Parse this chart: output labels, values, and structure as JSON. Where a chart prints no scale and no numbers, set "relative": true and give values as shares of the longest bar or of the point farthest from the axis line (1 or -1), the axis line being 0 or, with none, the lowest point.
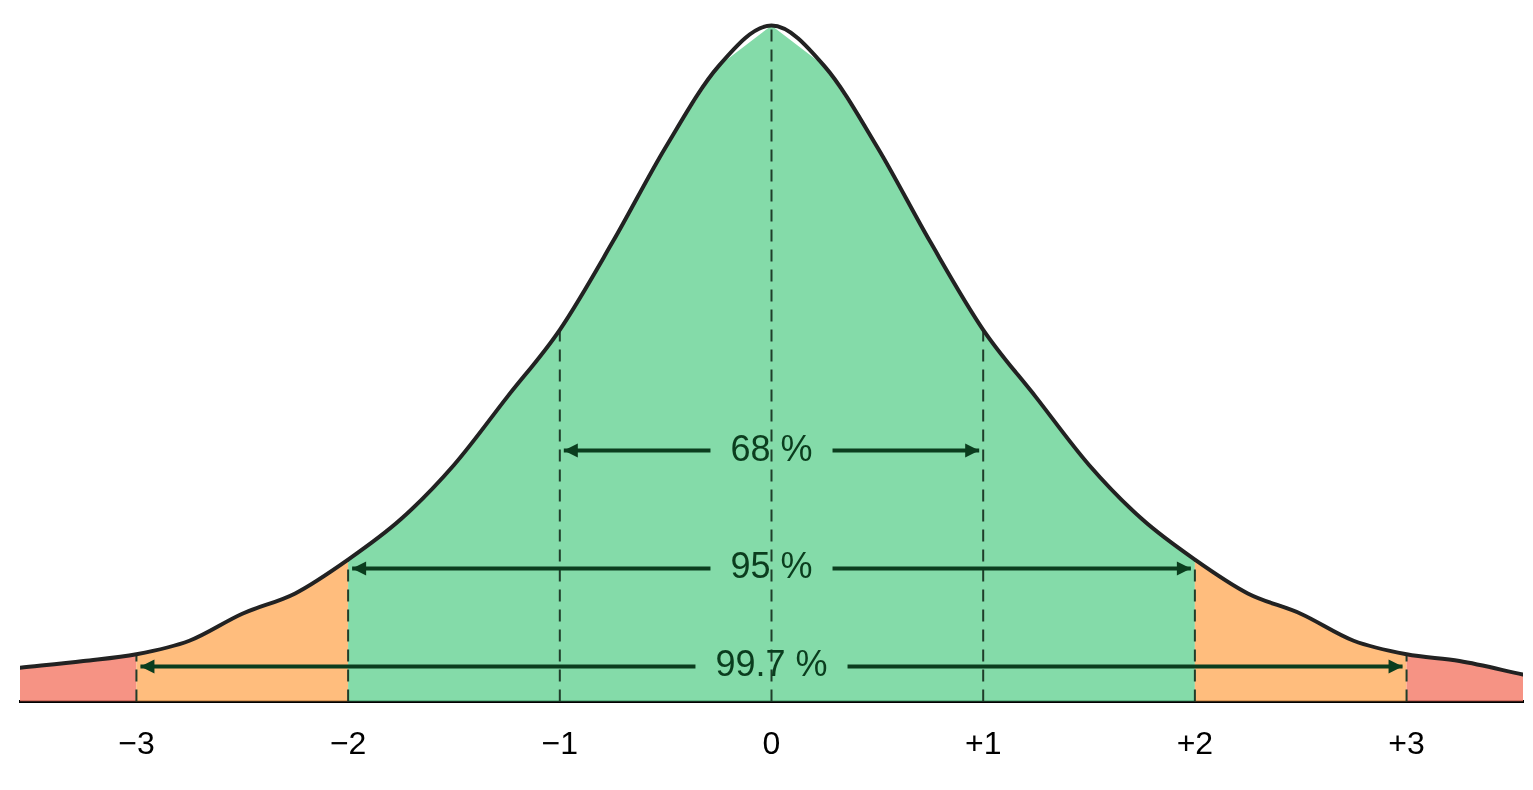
{
  "chart_data": {
    "type": "line",
    "relative": true,
    "legend": false,
    "grid": false,
    "marker": "none",
    "tick_labels": "x",
    "x": [
      -3.55,
      -3.25,
      -3,
      -2.75,
      -2.5,
      -2.25,
      -2,
      -1.75,
      -1.5,
      -1.25,
      -1,
      -0.75,
      -0.5,
      -0.25,
      0,
      0.25,
      0.5,
      0.75,
      1,
      1.25,
      1.5,
      1.75,
      2,
      2.25,
      2.5,
      2.75,
      3,
      3.25,
      3.55
    ],
    "series": [
      {
        "color": "#222222",
        "values": [
          0.05,
          0.06,
          0.07,
          0.09,
          0.13,
          0.16,
          0.21,
          0.27,
          0.35,
          0.45,
          0.55,
          0.68,
          0.82,
          0.94,
          1,
          0.94,
          0.82,
          0.68,
          0.55,
          0.45,
          0.35,
          0.27,
          0.21,
          0.16,
          0.13,
          0.09,
          0.07,
          0.06,
          0.04
        ]
      }
    ],
    "xlim": [
      -3.55,
      3.55
    ],
    "xticks": [
      {
        "value": -3,
        "label": "−3"
      },
      {
        "value": -2,
        "label": "−2"
      },
      {
        "value": -1,
        "label": "−1"
      },
      0,
      {
        "value": 1,
        "label": "+1"
      },
      {
        "value": 2,
        "label": "+2"
      },
      {
        "value": 3,
        "label": "+3"
      }
    ],
    "bands": [
      {
        "axis": "x",
        "from": -3.55,
        "to": -3,
        "color": "#f4806e"
      },
      {
        "axis": "x",
        "from": -3,
        "to": -2,
        "color": "#ffb266"
      },
      {
        "axis": "x",
        "from": -2,
        "to": 2,
        "color": "#6fd59a"
      },
      {
        "axis": "x",
        "from": 2,
        "to": 3,
        "color": "#ffb266"
      },
      {
        "axis": "x",
        "from": 3,
        "to": 3.55,
        "color": "#f4806e"
      }
    ],
    "ref_lines": [
      {
        "axis": "x",
        "value": -3,
        "line_style": "dashed"
      },
      {
        "axis": "x",
        "value": -2,
        "line_style": "dashed"
      },
      {
        "axis": "x",
        "value": -1,
        "line_style": "dashed"
      },
      {
        "axis": "x",
        "value": 0,
        "line_style": "dashed"
      },
      {
        "axis": "x",
        "value": 1,
        "line_style": "dashed"
      },
      {
        "axis": "x",
        "value": 2,
        "line_style": "dashed"
      },
      {
        "axis": "x",
        "value": 3,
        "line_style": "dashed"
      }
    ],
    "annotations": [
      "68 %",
      "95 %",
      "99.7 %"
    ]
  }
}
